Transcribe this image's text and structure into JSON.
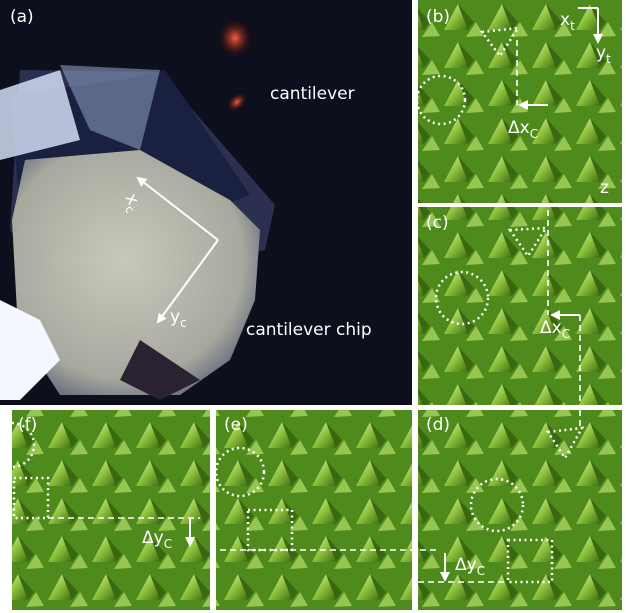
{
  "panel_a": {
    "label": "(a)",
    "cantilever": "cantilever",
    "chip": "cantilever chip",
    "axis_x": {
      "main": "x",
      "sub": "c"
    },
    "axis_y": {
      "main": "y",
      "sub": "c"
    }
  },
  "panel_b": {
    "label": "(b)",
    "axis_x": {
      "main": "x",
      "sub": "t"
    },
    "axis_y": {
      "main": "y",
      "sub": "t"
    },
    "z": "z",
    "shift": {
      "main": "Δx",
      "sub": "C"
    }
  },
  "panel_c": {
    "label": "(c)",
    "shift": {
      "main": "Δx",
      "sub": "C"
    }
  },
  "panel_d": {
    "label": "(d)",
    "shift": {
      "main": "Δy",
      "sub": "C"
    }
  },
  "panel_e": {
    "label": "(e)"
  },
  "panel_f": {
    "label": "(f)",
    "shift": {
      "main": "Δy",
      "sub": "C"
    }
  }
}
